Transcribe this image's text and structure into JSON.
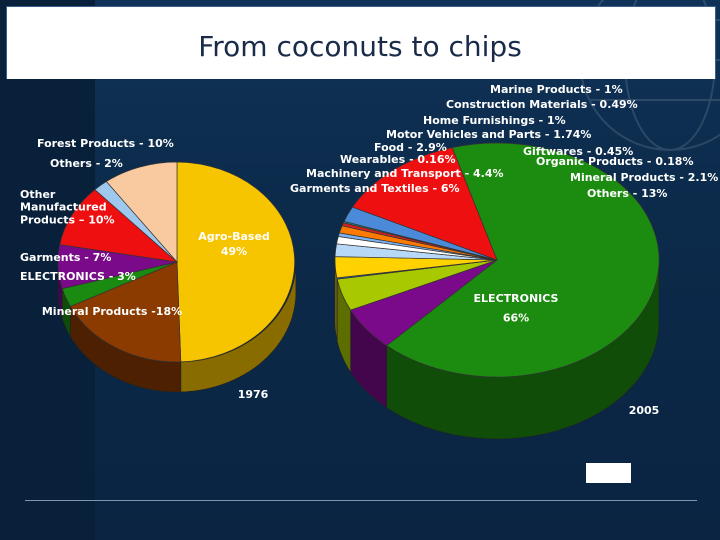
{
  "slide": {
    "title": "From coconuts to chips"
  },
  "chart_data": [
    {
      "type": "pie",
      "title": "1976",
      "slices": [
        {
          "label": "Agro-Based\n49%",
          "value": 49,
          "color": "#f7c500"
        },
        {
          "label": "Mineral Products -18%",
          "value": 18,
          "color": "#8b3a00"
        },
        {
          "label": "ELECTRONICS - 3%",
          "value": 3,
          "color": "#1a8a10"
        },
        {
          "label": "Garments - 7%",
          "value": 7,
          "color": "#7a0a8a"
        },
        {
          "label": "Other\nManufactured\nProducts – 10%",
          "value": 10,
          "color": "#ee1010"
        },
        {
          "label": "Others - 2%",
          "value": 2,
          "color": "#9ec8ee"
        },
        {
          "label": "Forest Products - 10%",
          "value": 10,
          "color": "#f9c9a0"
        }
      ]
    },
    {
      "type": "pie",
      "title": "2005",
      "slices": [
        {
          "label": "ELECTRONICS\n66%",
          "value": 66,
          "color": "#1c8c10"
        },
        {
          "label": "Garments and Textiles - 6%",
          "value": 6,
          "color": "#7a0a8a"
        },
        {
          "label": "Machinery and Transport - 4.4%",
          "value": 4.4,
          "color": "#a8c800"
        },
        {
          "label": "Wearables - 0.16%",
          "value": 0.16,
          "color": "#2a6ad0"
        },
        {
          "label": "Food - 2.9%",
          "value": 2.9,
          "color": "#ffd200"
        },
        {
          "label": "Motor Vehicles and Parts - 1.74%",
          "value": 1.74,
          "color": "#b8d8f8"
        },
        {
          "label": "Home Furnishings - 1%",
          "value": 1,
          "color": "#ffffff"
        },
        {
          "label": "Construction Materials - 0.49%",
          "value": 0.49,
          "color": "#7ab0ee"
        },
        {
          "label": "Marine Products - 1%",
          "value": 1,
          "color": "#ff7a00"
        },
        {
          "label": "Giftwares - 0.45%",
          "value": 0.45,
          "color": "#cc2222"
        },
        {
          "label": "Organic Products - 0.18%",
          "value": 0.18,
          "color": "#00b0a0"
        },
        {
          "label": "Mineral Products - 2.1%",
          "value": 2.1,
          "color": "#4a8ad8"
        },
        {
          "label": "Others - 13%",
          "value": 13,
          "color": "#ee1010"
        }
      ]
    }
  ]
}
